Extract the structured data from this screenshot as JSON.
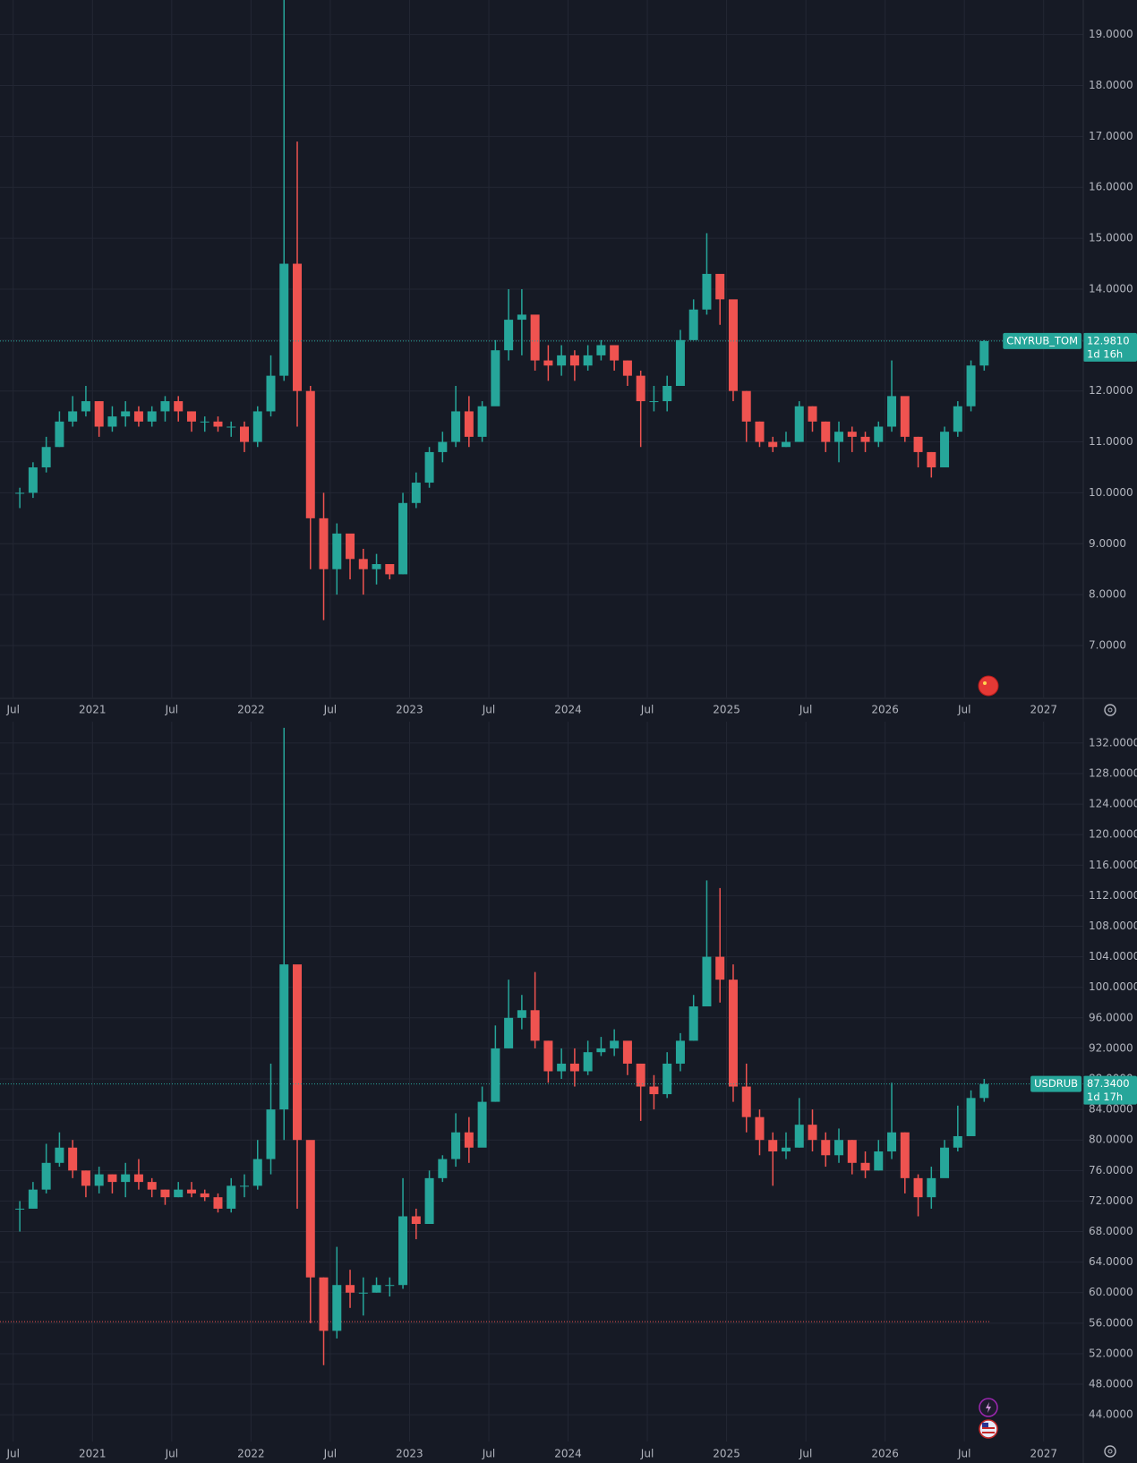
{
  "chart_data": [
    {
      "type": "candlestick",
      "symbol": "CNYRUB_TOM",
      "countdown": "1d 16h",
      "last_price": {
        "value": 12.981,
        "label": "12.9810"
      },
      "up_color": "#26a69a",
      "down_color": "#ef5350",
      "grid": true,
      "x": [
        "2020-07",
        "2020-08",
        "2020-09",
        "2020-10",
        "2020-11",
        "2020-12",
        "2021-01",
        "2021-02",
        "2021-03",
        "2021-04",
        "2021-05",
        "2021-06",
        "2021-07",
        "2021-08",
        "2021-09",
        "2021-10",
        "2021-11",
        "2021-12",
        "2022-01",
        "2022-02",
        "2022-03",
        "2022-04",
        "2022-05",
        "2022-06",
        "2022-07",
        "2022-08",
        "2022-09",
        "2022-10",
        "2022-11",
        "2022-12",
        "2023-01",
        "2023-02",
        "2023-03",
        "2023-04",
        "2023-05",
        "2023-06",
        "2023-07",
        "2023-08",
        "2023-09",
        "2023-10",
        "2023-11",
        "2023-12",
        "2024-01",
        "2024-02",
        "2024-03",
        "2024-04",
        "2024-05",
        "2024-06",
        "2024-07",
        "2024-08",
        "2024-09",
        "2024-10",
        "2024-11",
        "2024-12",
        "2025-01",
        "2025-02",
        "2025-03",
        "2025-04",
        "2025-05",
        "2025-06",
        "2025-07",
        "2025-08",
        "2025-09",
        "2025-10",
        "2025-11",
        "2025-12",
        "2026-01",
        "2026-02",
        "2026-03",
        "2026-04",
        "2026-05",
        "2026-06",
        "2026-07",
        "2026-08"
      ],
      "close": [
        10.0,
        10.5,
        10.9,
        11.4,
        11.6,
        11.8,
        11.3,
        11.5,
        11.6,
        11.4,
        11.6,
        11.8,
        11.6,
        11.4,
        11.4,
        11.3,
        11.3,
        11.0,
        11.6,
        12.3,
        14.5,
        12.0,
        9.5,
        8.5,
        9.2,
        8.7,
        8.5,
        8.6,
        8.4,
        9.8,
        10.2,
        10.8,
        11.0,
        11.6,
        11.1,
        11.7,
        12.8,
        13.4,
        13.5,
        12.6,
        12.5,
        12.7,
        12.5,
        12.7,
        12.9,
        12.6,
        12.3,
        11.8,
        11.8,
        12.1,
        13.0,
        13.6,
        14.3,
        13.8,
        12.0,
        11.4,
        11.0,
        10.9,
        11.0,
        11.7,
        11.4,
        11.0,
        11.2,
        11.1,
        11.0,
        11.3,
        11.9,
        11.1,
        10.8,
        10.5,
        11.2,
        11.7,
        12.5,
        12.981
      ],
      "high": [
        10.1,
        10.6,
        11.1,
        11.6,
        11.9,
        12.1,
        11.8,
        11.7,
        11.8,
        11.7,
        11.7,
        11.9,
        11.9,
        11.6,
        11.5,
        11.5,
        11.4,
        11.4,
        11.7,
        12.7,
        19.7,
        16.9,
        12.1,
        10.0,
        9.4,
        9.1,
        8.9,
        8.8,
        8.5,
        10.0,
        10.4,
        10.9,
        11.2,
        12.1,
        11.9,
        11.8,
        13.0,
        14.0,
        14.0,
        13.0,
        12.9,
        12.9,
        12.8,
        12.9,
        13.0,
        12.9,
        12.6,
        12.4,
        12.1,
        12.3,
        13.2,
        13.8,
        15.1,
        14.1,
        13.6,
        12.0,
        11.4,
        11.1,
        11.2,
        11.8,
        11.7,
        11.4,
        11.4,
        11.3,
        11.2,
        11.4,
        12.6,
        11.8,
        11.1,
        10.8,
        11.3,
        11.8,
        12.6,
        13.0
      ],
      "low": [
        9.7,
        9.9,
        10.4,
        10.9,
        11.3,
        11.5,
        11.1,
        11.2,
        11.3,
        11.3,
        11.3,
        11.4,
        11.4,
        11.2,
        11.2,
        11.2,
        11.1,
        10.8,
        10.9,
        11.5,
        12.2,
        11.3,
        8.5,
        7.5,
        8.0,
        8.3,
        8.0,
        8.2,
        8.3,
        8.4,
        9.7,
        10.1,
        10.6,
        10.9,
        10.9,
        11.0,
        11.8,
        12.6,
        12.7,
        12.4,
        12.2,
        12.3,
        12.2,
        12.4,
        12.6,
        12.4,
        12.1,
        10.9,
        11.6,
        11.6,
        12.1,
        13.0,
        13.5,
        13.3,
        11.8,
        11.0,
        10.9,
        10.8,
        10.9,
        11.0,
        11.2,
        10.8,
        10.6,
        10.8,
        10.8,
        10.9,
        11.2,
        11.0,
        10.5,
        10.3,
        10.5,
        11.1,
        11.6,
        12.4
      ],
      "xlim": [
        "2020-06",
        "2027-04"
      ],
      "xticks": [
        {
          "value": "2020-07",
          "label": "Jul"
        },
        {
          "value": "2021-01",
          "label": "2021"
        },
        {
          "value": "2021-07",
          "label": "Jul"
        },
        {
          "value": "2022-01",
          "label": "2022"
        },
        {
          "value": "2022-07",
          "label": "Jul"
        },
        {
          "value": "2023-01",
          "label": "2023"
        },
        {
          "value": "2023-07",
          "label": "Jul"
        },
        {
          "value": "2024-01",
          "label": "2024"
        },
        {
          "value": "2024-07",
          "label": "Jul"
        },
        {
          "value": "2025-01",
          "label": "2025"
        },
        {
          "value": "2025-07",
          "label": "Jul"
        },
        {
          "value": "2026-01",
          "label": "2026"
        },
        {
          "value": "2026-07",
          "label": "Jul"
        },
        {
          "value": "2027-01",
          "label": "2027"
        }
      ],
      "ylim": [
        5.98,
        19.68
      ],
      "yticks": [
        {
          "value": 7,
          "label": "7.0000"
        },
        {
          "value": 8,
          "label": "8.0000"
        },
        {
          "value": 9,
          "label": "9.0000"
        },
        {
          "value": 10,
          "label": "10.0000"
        },
        {
          "value": 11,
          "label": "11.0000"
        },
        {
          "value": 12,
          "label": "12.0000"
        },
        {
          "value": 13,
          "label": "13.0000"
        },
        {
          "value": 14,
          "label": "14.0000"
        },
        {
          "value": 15,
          "label": "15.0000"
        },
        {
          "value": 16,
          "label": "16.0000"
        },
        {
          "value": 17,
          "label": "17.0000"
        },
        {
          "value": 18,
          "label": "18.0000"
        },
        {
          "value": 19,
          "label": "19.0000"
        }
      ]
    },
    {
      "type": "candlestick",
      "symbol": "USDRUB",
      "countdown": "1d 17h",
      "last_price": {
        "value": 87.34,
        "label": "87.3400"
      },
      "up_color": "#26a69a",
      "down_color": "#ef5350",
      "grid": true,
      "hline": {
        "value": 56.2,
        "color": "#ef5350"
      },
      "x": [
        "2020-07",
        "2020-08",
        "2020-09",
        "2020-10",
        "2020-11",
        "2020-12",
        "2021-01",
        "2021-02",
        "2021-03",
        "2021-04",
        "2021-05",
        "2021-06",
        "2021-07",
        "2021-08",
        "2021-09",
        "2021-10",
        "2021-11",
        "2021-12",
        "2022-01",
        "2022-02",
        "2022-03",
        "2022-04",
        "2022-05",
        "2022-06",
        "2022-07",
        "2022-08",
        "2022-09",
        "2022-10",
        "2022-11",
        "2022-12",
        "2023-01",
        "2023-02",
        "2023-03",
        "2023-04",
        "2023-05",
        "2023-06",
        "2023-07",
        "2023-08",
        "2023-09",
        "2023-10",
        "2023-11",
        "2023-12",
        "2024-01",
        "2024-02",
        "2024-03",
        "2024-04",
        "2024-05",
        "2024-06",
        "2024-07",
        "2024-08",
        "2024-09",
        "2024-10",
        "2024-11",
        "2024-12",
        "2025-01",
        "2025-02",
        "2025-03",
        "2025-04",
        "2025-05",
        "2025-06",
        "2025-07",
        "2025-08",
        "2025-09",
        "2025-10",
        "2025-11",
        "2025-12",
        "2026-01",
        "2026-02",
        "2026-03",
        "2026-04",
        "2026-05",
        "2026-06",
        "2026-07",
        "2026-08"
      ],
      "close": [
        71.0,
        73.5,
        77.0,
        79.0,
        76.0,
        74.0,
        75.5,
        74.5,
        75.5,
        74.5,
        73.5,
        72.5,
        73.5,
        73.0,
        72.5,
        71.0,
        74.0,
        74.0,
        77.5,
        84.0,
        103.0,
        80.0,
        62.0,
        55.0,
        61.0,
        60.0,
        60.0,
        61.0,
        61.0,
        70.0,
        69.0,
        75.0,
        77.5,
        81.0,
        79.0,
        85.0,
        92.0,
        96.0,
        97.0,
        93.0,
        89.0,
        90.0,
        89.0,
        91.5,
        92.0,
        93.0,
        90.0,
        87.0,
        86.0,
        90.0,
        93.0,
        97.5,
        104.0,
        101.0,
        87.0,
        83.0,
        80.0,
        78.5,
        79.0,
        82.0,
        80.0,
        78.0,
        80.0,
        77.0,
        76.0,
        78.5,
        81.0,
        75.0,
        72.5,
        75.0,
        79.0,
        80.5,
        85.5,
        87.34
      ],
      "high": [
        72.0,
        74.5,
        79.5,
        81.0,
        80.0,
        76.0,
        76.5,
        75.5,
        77.0,
        77.5,
        75.0,
        73.5,
        74.5,
        74.5,
        73.5,
        73.0,
        75.0,
        75.5,
        80.0,
        90.0,
        134.0,
        100.0,
        79.0,
        62.0,
        66.0,
        63.0,
        62.0,
        62.0,
        62.0,
        75.0,
        71.0,
        76.0,
        78.0,
        83.5,
        83.0,
        87.0,
        95.0,
        101.0,
        99.0,
        102.0,
        93.0,
        92.0,
        92.0,
        93.0,
        93.5,
        94.5,
        92.0,
        90.0,
        88.5,
        91.5,
        94.0,
        99.0,
        114.0,
        113.0,
        103.0,
        90.0,
        84.0,
        81.0,
        81.0,
        85.5,
        84.0,
        81.0,
        81.5,
        80.0,
        78.5,
        80.0,
        87.5,
        81.0,
        75.5,
        76.5,
        80.0,
        84.5,
        86.5,
        88.0
      ],
      "low": [
        68.0,
        71.0,
        73.0,
        76.5,
        75.0,
        72.5,
        73.0,
        73.0,
        72.5,
        73.5,
        72.5,
        71.5,
        72.5,
        72.5,
        72.0,
        70.5,
        70.5,
        72.5,
        73.5,
        75.5,
        80.0,
        71.0,
        56.0,
        50.5,
        54.0,
        58.0,
        57.0,
        60.0,
        59.5,
        60.5,
        67.0,
        69.0,
        74.5,
        76.5,
        77.0,
        80.0,
        85.0,
        92.0,
        94.5,
        92.0,
        87.5,
        88.0,
        87.0,
        88.5,
        91.0,
        91.0,
        88.5,
        82.5,
        84.0,
        85.5,
        89.0,
        93.0,
        98.0,
        98.0,
        85.0,
        81.0,
        78.0,
        74.0,
        77.5,
        79.0,
        78.5,
        76.5,
        77.0,
        75.5,
        75.0,
        76.0,
        77.5,
        73.0,
        70.0,
        71.0,
        76.5,
        78.5,
        82.0,
        85.0
      ],
      "xlim": [
        "2020-06",
        "2027-04"
      ],
      "xticks": [
        {
          "value": "2020-07",
          "label": "Jul"
        },
        {
          "value": "2021-01",
          "label": "2021"
        },
        {
          "value": "2021-07",
          "label": "Jul"
        },
        {
          "value": "2022-01",
          "label": "2022"
        },
        {
          "value": "2022-07",
          "label": "Jul"
        },
        {
          "value": "2023-01",
          "label": "2023"
        },
        {
          "value": "2023-07",
          "label": "Jul"
        },
        {
          "value": "2024-01",
          "label": "2024"
        },
        {
          "value": "2024-07",
          "label": "Jul"
        },
        {
          "value": "2025-01",
          "label": "2025"
        },
        {
          "value": "2025-07",
          "label": "Jul"
        },
        {
          "value": "2026-01",
          "label": "2026"
        },
        {
          "value": "2026-07",
          "label": "Jul"
        },
        {
          "value": "2027-01",
          "label": "2027"
        }
      ],
      "ylim": [
        40.5,
        134.8
      ],
      "yticks": [
        {
          "value": 44,
          "label": "44.0000"
        },
        {
          "value": 48,
          "label": "48.0000"
        },
        {
          "value": 52,
          "label": "52.0000"
        },
        {
          "value": 56,
          "label": "56.0000"
        },
        {
          "value": 60,
          "label": "60.0000"
        },
        {
          "value": 64,
          "label": "64.0000"
        },
        {
          "value": 68,
          "label": "68.0000"
        },
        {
          "value": 72,
          "label": "72.0000"
        },
        {
          "value": 76,
          "label": "76.0000"
        },
        {
          "value": 80,
          "label": "80.0000"
        },
        {
          "value": 84,
          "label": "84.0000"
        },
        {
          "value": 88,
          "label": "88.0000"
        },
        {
          "value": 92,
          "label": "92.0000"
        },
        {
          "value": 96,
          "label": "96.0000"
        },
        {
          "value": 100,
          "label": "100.0000"
        },
        {
          "value": 104,
          "label": "104.0000"
        },
        {
          "value": 108,
          "label": "108.0000"
        },
        {
          "value": 112,
          "label": "112.0000"
        },
        {
          "value": 116,
          "label": "116.0000"
        },
        {
          "value": 120,
          "label": "120.0000"
        },
        {
          "value": 124,
          "label": "124.0000"
        },
        {
          "value": 128,
          "label": "128.0000"
        },
        {
          "value": 132,
          "label": "132.0000"
        }
      ]
    }
  ]
}
